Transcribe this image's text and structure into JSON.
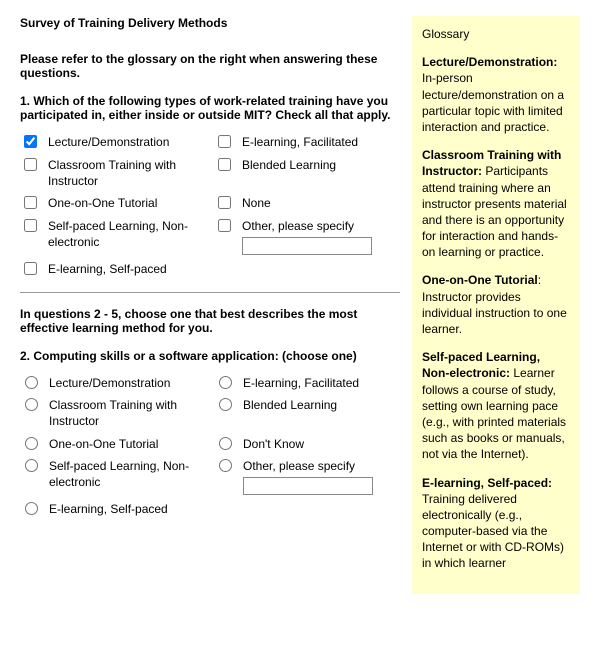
{
  "title": "Survey of Training Delivery Methods",
  "instruction1": "Please refer to the glossary on the right when answering these questions.",
  "q1": {
    "text": "1. Which of the following types of work-related training have you participated in, either inside or outside MIT? Check all that apply.",
    "col1": [
      {
        "label": "Lecture/Demonstration",
        "checked": true
      },
      {
        "label": "Classroom Training with Instructor",
        "checked": false
      },
      {
        "label": "One-on-One Tutorial",
        "checked": false
      },
      {
        "label": "Self-paced Learning, Non-electronic",
        "checked": false
      },
      {
        "label": "E-learning, Self-paced",
        "checked": false
      }
    ],
    "col2": [
      {
        "label": "E-learning, Facilitated",
        "checked": false
      },
      {
        "label": "Blended Learning",
        "checked": false
      },
      {
        "label": "None",
        "checked": false
      },
      {
        "label": "Other, please specify",
        "checked": false,
        "other": true
      }
    ]
  },
  "instruction2": "In questions 2 - 5, choose one that best describes the most effective learning method for you.",
  "q2": {
    "text": "2. Computing skills or a software application: (choose one)",
    "col1": [
      {
        "label": "Lecture/Demonstration"
      },
      {
        "label": "Classroom Training with Instructor"
      },
      {
        "label": "One-on-One Tutorial"
      },
      {
        "label": "Self-paced Learning, Non-electronic"
      },
      {
        "label": "E-learning, Self-paced"
      }
    ],
    "col2": [
      {
        "label": "E-learning, Facilitated"
      },
      {
        "label": "Blended Learning"
      },
      {
        "label": "Don't Know"
      },
      {
        "label": "Other, please specify",
        "other": true
      }
    ]
  },
  "glossary": {
    "title": "Glossary",
    "entries": [
      {
        "term": "Lecture/Demonstration:",
        "def": " In-person lecture/demonstration on a particular topic with limited interaction and practice."
      },
      {
        "term": "Classroom Training with Instructor:",
        "def": " Participants attend training where an instructor presents material and there is an opportunity for interaction and hands-on learning or practice."
      },
      {
        "term": "One-on-One Tutorial",
        "def": ": Instructor provides individual instruction to one learner."
      },
      {
        "term": "Self-paced Learning, Non-electronic:",
        "def": " Learner follows a course of study, setting own learning pace (e.g., with printed materials such as books or manuals, not via the Internet)."
      },
      {
        "term": "E-learning, Self-paced:",
        "def": " Training delivered electronically (e.g., computer-based via the Internet or with CD-ROMs) in which learner"
      }
    ]
  },
  "colors": {
    "glossary_bg": "#ffffcc",
    "text": "#000000",
    "rule": "#999999"
  }
}
